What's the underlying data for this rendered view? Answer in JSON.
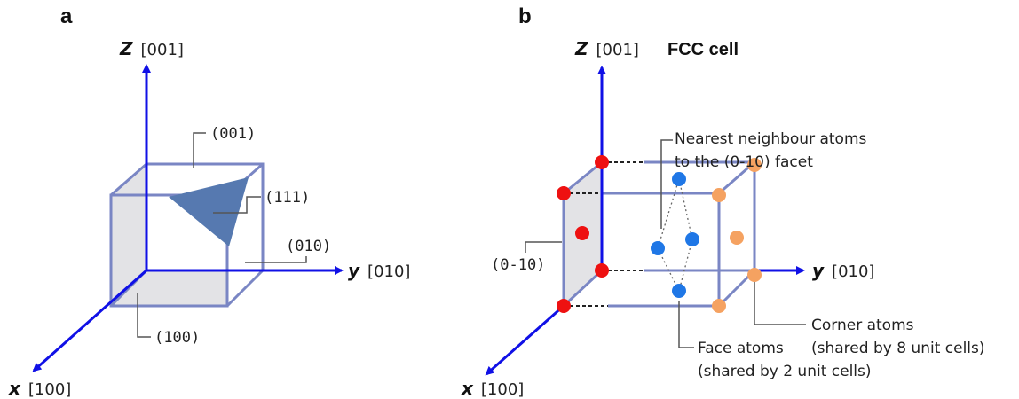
{
  "panel_a": {
    "letter": "a",
    "axes": {
      "z": {
        "name": "Z",
        "index": "[001]"
      },
      "y": {
        "name": "y",
        "index": "[010]"
      },
      "x": {
        "name": "x",
        "index": "[100]"
      }
    },
    "facets": {
      "f001": "(001)",
      "f111": "(111)",
      "f010": "(010)",
      "f100": "(100)"
    }
  },
  "panel_b": {
    "letter": "b",
    "title": "FCC cell",
    "axes": {
      "z": {
        "name": "Z",
        "index": "[001]"
      },
      "y": {
        "name": "y",
        "index": "[010]"
      },
      "x": {
        "name": "x",
        "index": "[100]"
      }
    },
    "facet_label": "(0-10)",
    "nearest_label": [
      "Nearest neighbour atoms",
      "to the (0-10) facet"
    ],
    "corner_label": [
      "Corner atoms",
      "(shared by 8 unit cells)"
    ],
    "face_label": [
      "Face atoms",
      "(shared by 2 unit cells)"
    ]
  },
  "colors": {
    "axis": "#1010e6",
    "cube_edge": "#7a86c4",
    "face_fill": "#e3e3e6",
    "triangle": "#5679b0",
    "atom_red": "#ee1111",
    "atom_orange": "#f5a261",
    "atom_blue": "#1f77e6",
    "leader": "#555555"
  }
}
